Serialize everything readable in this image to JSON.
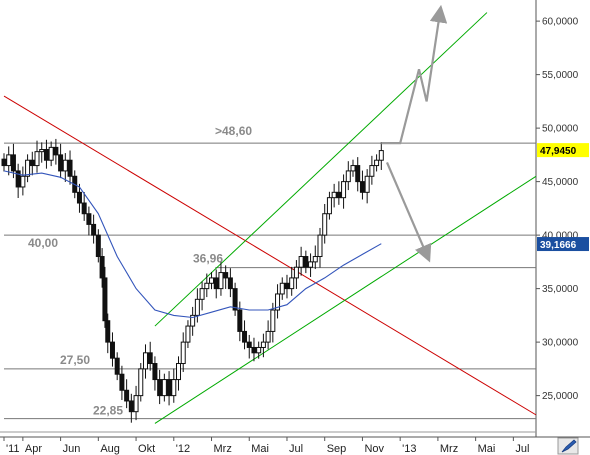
{
  "chart_data": {
    "type": "candlestick",
    "title": "",
    "y_axis": {
      "ticks": [
        25,
        30,
        35,
        40,
        45,
        50,
        55,
        60
      ],
      "tick_labels": [
        "25,0000",
        "30,0000",
        "35,0000",
        "40,0000",
        "45,0000",
        "50,0000",
        "55,0000",
        "60,0000"
      ],
      "range": [
        21.6,
        61.6
      ]
    },
    "x_axis": {
      "ticks": [
        {
          "label": "'11",
          "month_index": 0
        },
        {
          "label": "Apr",
          "month_index": 1
        },
        {
          "label": "Jun",
          "month_index": 3
        },
        {
          "label": "Aug",
          "month_index": 5
        },
        {
          "label": "Okt",
          "month_index": 7
        },
        {
          "label": "'12",
          "month_index": 9
        },
        {
          "label": "Mrz",
          "month_index": 11
        },
        {
          "label": "Mai",
          "month_index": 13
        },
        {
          "label": "Jul",
          "month_index": 15
        },
        {
          "label": "Sep",
          "month_index": 17
        },
        {
          "label": "Nov",
          "month_index": 19
        },
        {
          "label": "'13",
          "month_index": 21
        },
        {
          "label": "Mrz",
          "month_index": 23
        },
        {
          "label": "Mai",
          "month_index": 25
        },
        {
          "label": "Jul",
          "month_index": 27
        }
      ],
      "range": [
        0,
        28.2
      ]
    },
    "price_closes": [
      [
        0.0,
        46.5
      ],
      [
        0.25,
        47.5
      ],
      [
        0.5,
        46.0
      ],
      [
        0.75,
        44.5
      ],
      [
        1.0,
        45.5
      ],
      [
        1.25,
        47.0
      ],
      [
        1.5,
        46.5
      ],
      [
        1.75,
        47.8
      ],
      [
        2.0,
        48.0
      ],
      [
        2.25,
        47.0
      ],
      [
        2.5,
        48.2
      ],
      [
        2.75,
        47.5
      ],
      [
        3.0,
        46.0
      ],
      [
        3.25,
        47.0
      ],
      [
        3.5,
        45.5
      ],
      [
        3.75,
        44.0
      ],
      [
        4.0,
        43.0
      ],
      [
        4.25,
        42.0
      ],
      [
        4.5,
        41.0
      ],
      [
        4.75,
        40.0
      ],
      [
        5.0,
        38.0
      ],
      [
        5.2,
        36.0
      ],
      [
        5.35,
        32.0
      ],
      [
        5.5,
        30.0
      ],
      [
        5.75,
        28.5
      ],
      [
        6.0,
        27.0
      ],
      [
        6.25,
        25.5
      ],
      [
        6.5,
        24.5
      ],
      [
        6.75,
        23.5
      ],
      [
        7.0,
        25.0
      ],
      [
        7.25,
        27.5
      ],
      [
        7.5,
        29.0
      ],
      [
        7.75,
        28.0
      ],
      [
        8.0,
        26.5
      ],
      [
        8.25,
        25.0
      ],
      [
        8.5,
        26.5
      ],
      [
        8.75,
        25.0
      ],
      [
        9.0,
        26.5
      ],
      [
        9.25,
        28.0
      ],
      [
        9.5,
        30.0
      ],
      [
        9.75,
        31.5
      ],
      [
        10.0,
        32.5
      ],
      [
        10.25,
        34.0
      ],
      [
        10.5,
        35.0
      ],
      [
        10.75,
        35.5
      ],
      [
        11.0,
        36.0
      ],
      [
        11.25,
        35.0
      ],
      [
        11.5,
        36.5
      ],
      [
        11.75,
        36.0
      ],
      [
        12.0,
        35.0
      ],
      [
        12.25,
        33.0
      ],
      [
        12.5,
        31.0
      ],
      [
        12.75,
        30.0
      ],
      [
        13.0,
        29.5
      ],
      [
        13.25,
        29.0
      ],
      [
        13.5,
        29.5
      ],
      [
        13.75,
        30.0
      ],
      [
        14.0,
        31.0
      ],
      [
        14.25,
        33.0
      ],
      [
        14.5,
        34.5
      ],
      [
        14.75,
        35.5
      ],
      [
        15.0,
        35.0
      ],
      [
        15.25,
        36.0
      ],
      [
        15.5,
        37.0
      ],
      [
        15.75,
        38.0
      ],
      [
        16.0,
        37.0
      ],
      [
        16.25,
        37.5
      ],
      [
        16.5,
        38.0
      ],
      [
        16.75,
        40.0
      ],
      [
        17.0,
        42.0
      ],
      [
        17.25,
        43.5
      ],
      [
        17.5,
        44.0
      ],
      [
        17.75,
        43.5
      ],
      [
        18.0,
        45.0
      ],
      [
        18.25,
        46.0
      ],
      [
        18.5,
        46.5
      ],
      [
        18.75,
        45.0
      ],
      [
        19.0,
        44.0
      ],
      [
        19.25,
        45.5
      ],
      [
        19.5,
        46.5
      ],
      [
        19.75,
        47.0
      ],
      [
        20.0,
        47.9
      ]
    ],
    "moving_average": [
      [
        0,
        46.0
      ],
      [
        1,
        45.6
      ],
      [
        2,
        45.8
      ],
      [
        3,
        45.4
      ],
      [
        4,
        44.5
      ],
      [
        5,
        42.0
      ],
      [
        6,
        38.0
      ],
      [
        7,
        35.0
      ],
      [
        8,
        33.0
      ],
      [
        9,
        32.5
      ],
      [
        10,
        32.3
      ],
      [
        11,
        32.8
      ],
      [
        12,
        33.3
      ],
      [
        13,
        33.0
      ],
      [
        14,
        33.0
      ],
      [
        15,
        33.5
      ],
      [
        16,
        35.0
      ],
      [
        17,
        36.0
      ],
      [
        18,
        37.2
      ],
      [
        19,
        38.2
      ],
      [
        20,
        39.2
      ]
    ],
    "lines": {
      "resistance_down": {
        "color": "#cc0000",
        "points": [
          [
            0,
            53.0
          ],
          [
            28.2,
            23.2
          ]
        ]
      },
      "channel_upper": {
        "color": "#00aa00",
        "points": [
          [
            8,
            31.5
          ],
          [
            25.6,
            60.8
          ]
        ]
      },
      "channel_lower": {
        "color": "#00aa00",
        "points": [
          [
            8,
            22.4
          ],
          [
            28.2,
            45.5
          ]
        ]
      }
    },
    "horizontal_levels": [
      {
        "label": ">48,60",
        "value": 48.6,
        "x_from": 0.0
      },
      {
        "label": "40,00",
        "value": 40.0,
        "x_from": 0.0
      },
      {
        "label": "36,96",
        "value": 36.96,
        "x_from": 11.2
      },
      {
        "label": "27,50",
        "value": 27.5,
        "x_from": 0.0
      },
      {
        "label": "22,85",
        "value": 22.85,
        "x_from": 0.0
      }
    ],
    "scenario_arrows": [
      {
        "label": "up",
        "points": [
          [
            20.0,
            48.6
          ],
          [
            21.0,
            48.6
          ],
          [
            22.0,
            55.5
          ],
          [
            22.4,
            52.5
          ],
          [
            23.1,
            60.7
          ]
        ]
      },
      {
        "label": "down",
        "points": [
          [
            20.3,
            46.8
          ],
          [
            22.4,
            38.2
          ]
        ]
      }
    ],
    "last_price_badge": {
      "label": "47,9450",
      "value": 47.945,
      "color": "#ffff00"
    },
    "ma_badge": {
      "label": "39,1666",
      "value": 39.1666,
      "color": "#1b4fa0"
    }
  },
  "colors": {
    "grid": "#aaaaaa",
    "candle": "#111111",
    "ma": "#3355bb",
    "arrow": "#9a9a9a",
    "level_text": "#8a8a8a"
  },
  "corner_icon": "pen-icon"
}
